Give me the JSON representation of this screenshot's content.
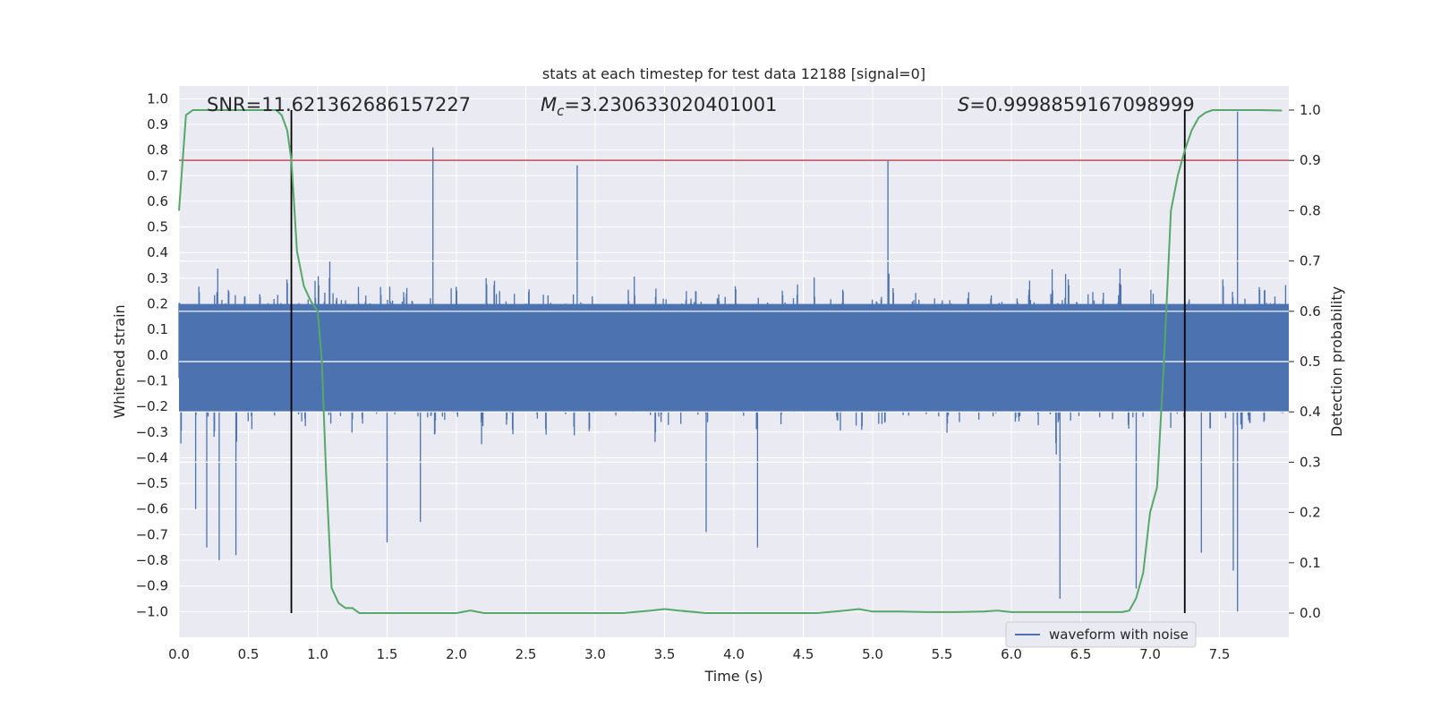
{
  "chart_data": {
    "type": "line",
    "title": "stats at each timestep for test data 12188 [signal=0]",
    "xlabel": "Time (s)",
    "ylabel": "Whitened strain",
    "y2label": "Detection probability",
    "xlim": [
      0.0,
      8.0
    ],
    "ylim": [
      -1.1,
      1.05
    ],
    "y2lim": [
      -0.048,
      1.048
    ],
    "xticks": [
      0.0,
      0.5,
      1.0,
      1.5,
      2.0,
      2.5,
      3.0,
      3.5,
      4.0,
      4.5,
      5.0,
      5.5,
      6.0,
      6.5,
      7.0,
      7.5
    ],
    "xtick_labels": [
      "0.0",
      "0.5",
      "1.0",
      "1.5",
      "2.0",
      "2.5",
      "3.0",
      "3.5",
      "4.0",
      "4.5",
      "5.0",
      "5.5",
      "6.0",
      "6.5",
      "7.0",
      "7.5"
    ],
    "yticks": [
      -1.0,
      -0.9,
      -0.8,
      -0.7,
      -0.6,
      -0.5,
      -0.4,
      -0.3,
      -0.2,
      -0.1,
      0.0,
      0.1,
      0.2,
      0.3,
      0.4,
      0.5,
      0.6,
      0.7,
      0.8,
      0.9,
      1.0
    ],
    "ytick_labels": [
      "−1.0",
      "−0.9",
      "−0.8",
      "−0.7",
      "−0.6",
      "−0.5",
      "−0.4",
      "−0.3",
      "−0.2",
      "−0.1",
      "0.0",
      "0.1",
      "0.2",
      "0.3",
      "0.4",
      "0.5",
      "0.6",
      "0.7",
      "0.8",
      "0.9",
      "1.0"
    ],
    "y2ticks": [
      0.0,
      0.1,
      0.2,
      0.3,
      0.4,
      0.5,
      0.6,
      0.7,
      0.8,
      0.9,
      1.0
    ],
    "y2tick_labels": [
      "0.0",
      "0.1",
      "0.2",
      "0.3",
      "0.4",
      "0.5",
      "0.6",
      "0.7",
      "0.8",
      "0.9",
      "1.0"
    ],
    "grid": true,
    "legend": {
      "placement": "lower-right",
      "entries": [
        "waveform with noise"
      ]
    },
    "annotations": {
      "snr": "SNR=11.621362686157227",
      "mc_symbol": "M",
      "mc_sub": "c",
      "mc_value": "=3.230633020401001",
      "s_symbol": "S",
      "s_value": "=0.9998859167098999"
    },
    "threshold_probability": 0.9,
    "vlines_time": [
      0.81,
      7.25
    ],
    "series": [
      {
        "name": "waveform with noise",
        "color": "#4c72b0",
        "axis": "left",
        "description_range": [
          -1.0,
          0.95
        ],
        "spikes": [
          {
            "t": 0.2,
            "y": -0.75
          },
          {
            "t": 0.29,
            "y": -0.8
          },
          {
            "t": 0.41,
            "y": -0.78
          },
          {
            "t": 1.5,
            "y": -0.73
          },
          {
            "t": 1.74,
            "y": -0.65
          },
          {
            "t": 1.83,
            "y": 0.81
          },
          {
            "t": 2.87,
            "y": 0.74
          },
          {
            "t": 3.8,
            "y": -0.69
          },
          {
            "t": 4.17,
            "y": -0.75
          },
          {
            "t": 5.11,
            "y": 0.76
          },
          {
            "t": 6.35,
            "y": -0.95
          },
          {
            "t": 6.9,
            "y": -0.91
          },
          {
            "t": 7.25,
            "y": 0.77
          },
          {
            "t": 7.6,
            "y": -0.84
          },
          {
            "t": 7.63,
            "y": 0.95
          },
          {
            "t": 7.63,
            "y": -1.0
          },
          {
            "t": 7.37,
            "y": -0.77
          },
          {
            "t": 0.12,
            "y": -0.6
          }
        ]
      },
      {
        "name": "detection probability",
        "color": "#55a868",
        "axis": "right",
        "x": [
          0.0,
          0.05,
          0.1,
          0.15,
          0.2,
          0.3,
          0.4,
          0.5,
          0.6,
          0.7,
          0.74,
          0.78,
          0.81,
          0.85,
          0.9,
          0.95,
          1.0,
          1.03,
          1.06,
          1.1,
          1.15,
          1.2,
          1.25,
          1.3,
          1.4,
          1.5,
          1.6,
          1.8,
          2.0,
          2.1,
          2.2,
          2.4,
          2.6,
          2.8,
          3.0,
          3.2,
          3.4,
          3.5,
          3.6,
          3.8,
          4.0,
          4.2,
          4.4,
          4.6,
          4.8,
          4.9,
          5.0,
          5.2,
          5.4,
          5.6,
          5.8,
          5.9,
          6.0,
          6.2,
          6.4,
          6.6,
          6.8,
          6.85,
          6.9,
          6.95,
          7.0,
          7.05,
          7.1,
          7.15,
          7.2,
          7.25,
          7.3,
          7.35,
          7.4,
          7.45,
          7.5,
          7.6,
          7.7,
          7.8,
          7.95
        ],
        "y": [
          0.8,
          0.99,
          1.0,
          1.0,
          1.0,
          1.0,
          1.0,
          1.0,
          1.0,
          1.0,
          0.99,
          0.96,
          0.9,
          0.72,
          0.65,
          0.62,
          0.6,
          0.5,
          0.28,
          0.05,
          0.02,
          0.01,
          0.01,
          0.0,
          0.0,
          0.0,
          0.0,
          0.0,
          0.0,
          0.005,
          0.0,
          0.0,
          0.0,
          0.0,
          0.0,
          0.0,
          0.005,
          0.008,
          0.005,
          0.0,
          0.0,
          0.0,
          0.0,
          0.0,
          0.005,
          0.008,
          0.003,
          0.003,
          0.002,
          0.002,
          0.003,
          0.005,
          0.002,
          0.002,
          0.002,
          0.002,
          0.002,
          0.005,
          0.03,
          0.08,
          0.2,
          0.25,
          0.5,
          0.8,
          0.87,
          0.92,
          0.96,
          0.985,
          0.995,
          1.0,
          1.0,
          1.0,
          1.0,
          1.0,
          0.999
        ]
      }
    ]
  }
}
